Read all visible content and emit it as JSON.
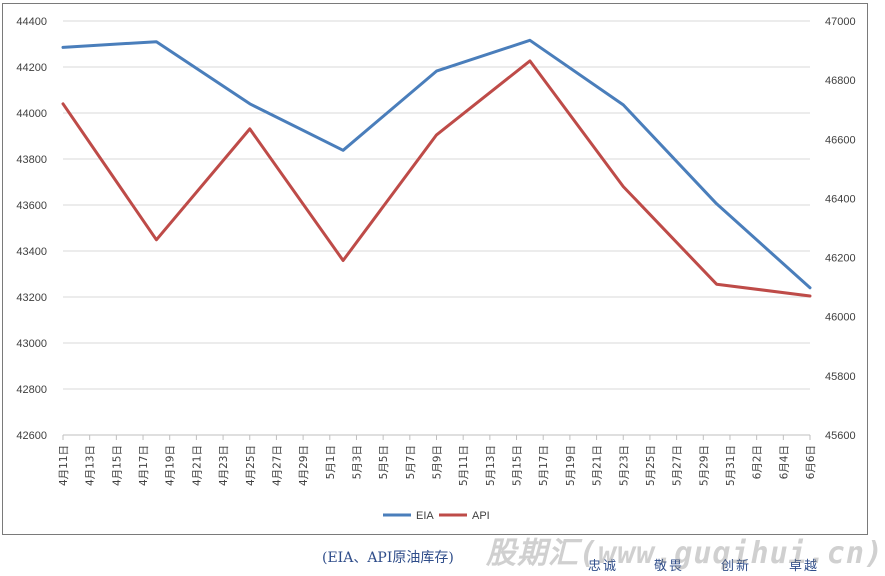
{
  "chart_data": {
    "type": "line",
    "categories": [
      "4月11日",
      "4月13日",
      "4月15日",
      "4月17日",
      "4月19日",
      "4月21日",
      "4月23日",
      "4月25日",
      "4月27日",
      "4月29日",
      "5月1日",
      "5月3日",
      "5月5日",
      "5月7日",
      "5月9日",
      "5月11日",
      "5月13日",
      "5月15日",
      "5月17日",
      "5月19日",
      "5月21日",
      "5月23日",
      "5月25日",
      "5月27日",
      "5月29日",
      "5月31日",
      "6月2日",
      "6月4日",
      "6月6日"
    ],
    "y_left": {
      "min": 42600,
      "max": 44400,
      "step": 200
    },
    "y_right": {
      "min": 45600,
      "max": 47000,
      "step": 200
    },
    "left_ticks": [
      "42600",
      "42800",
      "43000",
      "43200",
      "43400",
      "43600",
      "43800",
      "44000",
      "44200",
      "44400"
    ],
    "right_ticks": [
      "45600",
      "45800",
      "46000",
      "46200",
      "46400",
      "46600",
      "46800",
      "47000"
    ],
    "grid": true,
    "legend_position": "bottom",
    "series": [
      {
        "name": "EIA",
        "axis": "left",
        "color": "#4a7ebb",
        "points": [
          {
            "i": 0,
            "v": 44285
          },
          {
            "i": 3.5,
            "v": 44310
          },
          {
            "i": 7,
            "v": 44040
          },
          {
            "i": 10.5,
            "v": 43838
          },
          {
            "i": 14,
            "v": 44182
          },
          {
            "i": 17.5,
            "v": 44316
          },
          {
            "i": 21,
            "v": 44035
          },
          {
            "i": 24.5,
            "v": 43605
          },
          {
            "i": 28,
            "v": 43240
          }
        ]
      },
      {
        "name": "API",
        "axis": "right",
        "color": "#be4b48",
        "points": [
          {
            "i": 0,
            "v": 46720
          },
          {
            "i": 3.5,
            "v": 46260
          },
          {
            "i": 7,
            "v": 46635
          },
          {
            "i": 10.5,
            "v": 46190
          },
          {
            "i": 14,
            "v": 46615
          },
          {
            "i": 17.5,
            "v": 46865
          },
          {
            "i": 21,
            "v": 46440
          },
          {
            "i": 24.5,
            "v": 46110
          },
          {
            "i": 28,
            "v": 46070
          }
        ]
      }
    ]
  },
  "caption": "(EIA、API原油库存)",
  "motto": [
    "忠诚",
    "敬畏",
    "创新",
    "卓越"
  ],
  "watermark": "股期汇(www.guqihui.cn)"
}
